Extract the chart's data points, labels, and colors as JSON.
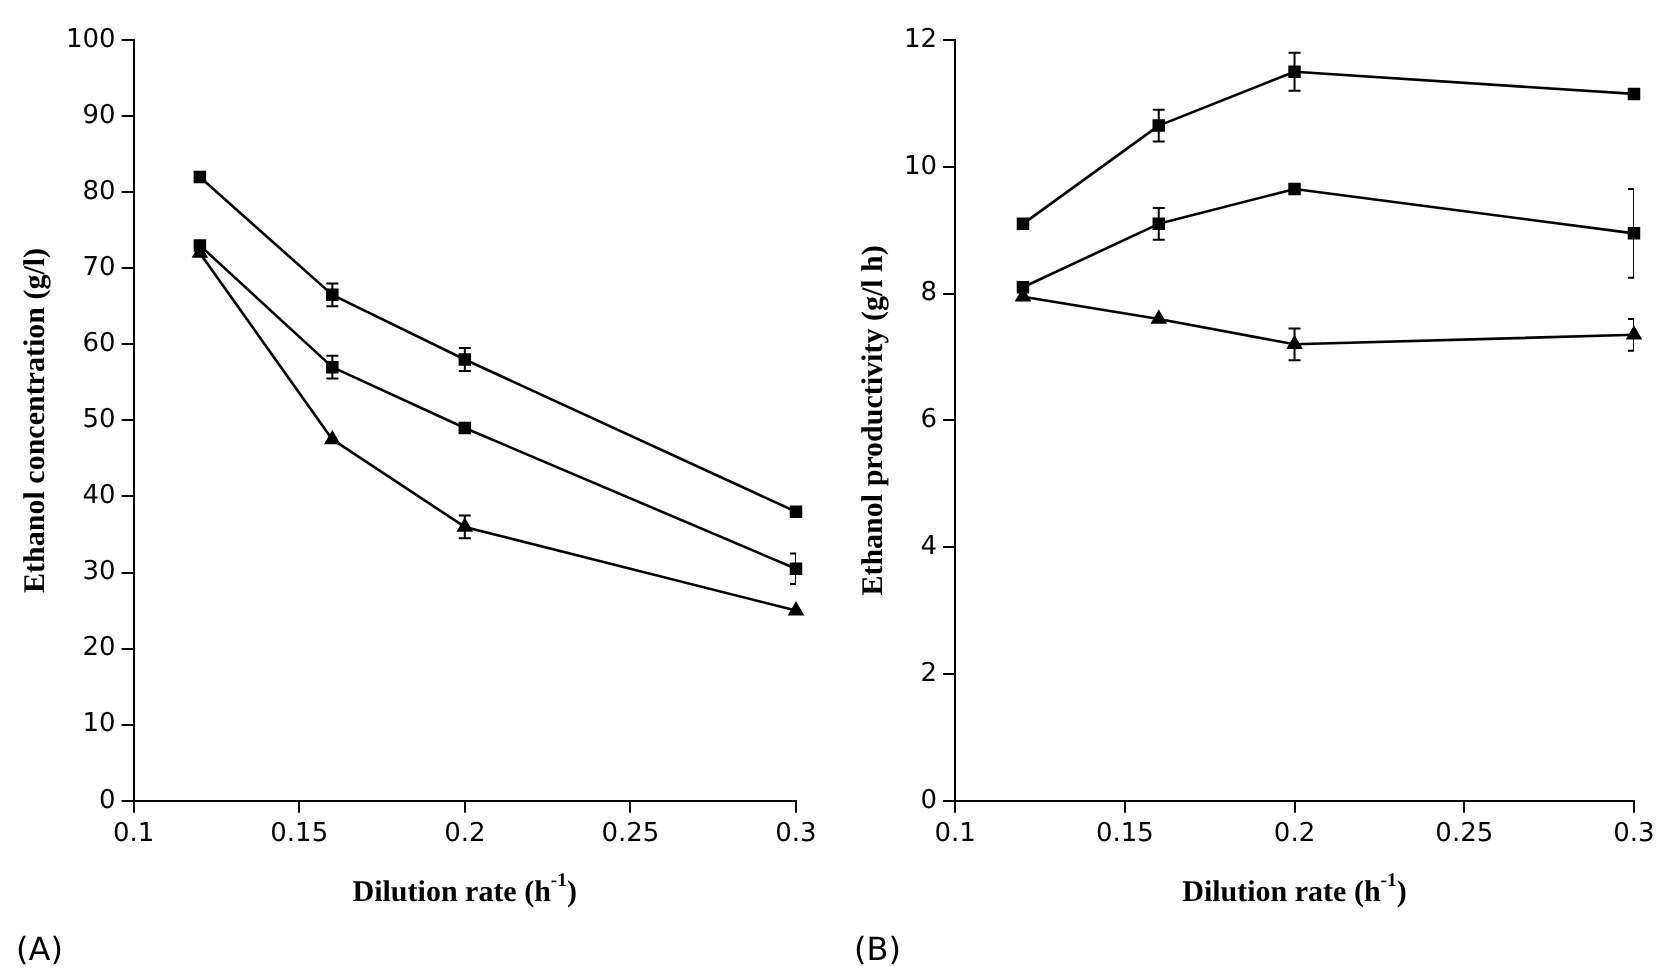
{
  "chart_data": [
    {
      "type": "line",
      "xlabel": "Dilution rate (h$^{-1}$)",
      "ylabel": "Ethanol concentration (g/l)",
      "annotations": [
        "(A)"
      ],
      "xlim": [
        0.1,
        0.3
      ],
      "xticks": [
        0.1,
        0.15,
        0.2,
        0.25,
        0.3
      ],
      "ylim": [
        0,
        100
      ],
      "yticks": [
        0,
        10,
        20,
        30,
        40,
        50,
        60,
        70,
        80,
        90,
        100
      ],
      "grid": false,
      "legend": false,
      "line_style": "solid",
      "series": [
        {
          "color": "#000000",
          "marker": "square",
          "x": [
            0.12,
            0.16,
            0.2,
            0.3
          ],
          "values": [
            82,
            66.5,
            58,
            38
          ],
          "errors": [
            null,
            1.5,
            1.5,
            null
          ]
        },
        {
          "color": "#000000",
          "marker": "square",
          "x": [
            0.12,
            0.16,
            0.2,
            0.3
          ],
          "values": [
            73,
            57,
            49,
            30.5
          ],
          "errors": [
            null,
            1.5,
            null,
            2
          ]
        },
        {
          "color": "#000000",
          "marker": "triangle",
          "x": [
            0.12,
            0.16,
            0.2,
            0.3
          ],
          "values": [
            72,
            47.5,
            36,
            25
          ],
          "errors": [
            null,
            null,
            1.5,
            null
          ]
        }
      ]
    },
    {
      "type": "line",
      "xlabel": "Dilution rate (h$^{-1}$)",
      "ylabel": "Ethanol productivity (g/l h)",
      "annotations": [
        "(B)"
      ],
      "xlim": [
        0.1,
        0.3
      ],
      "xticks": [
        0.1,
        0.15,
        0.2,
        0.25,
        0.3
      ],
      "ylim": [
        0,
        12
      ],
      "yticks": [
        0,
        2,
        4,
        6,
        8,
        10,
        12
      ],
      "grid": false,
      "legend": false,
      "line_style": "solid",
      "series": [
        {
          "color": "#000000",
          "marker": "square",
          "x": [
            0.12,
            0.16,
            0.2,
            0.3
          ],
          "values": [
            9.1,
            10.65,
            11.5,
            11.15
          ],
          "errors": [
            null,
            0.25,
            0.3,
            null
          ]
        },
        {
          "color": "#000000",
          "marker": "square",
          "x": [
            0.12,
            0.16,
            0.2,
            0.3
          ],
          "values": [
            8.1,
            9.1,
            9.65,
            8.95
          ],
          "errors": [
            null,
            0.25,
            null,
            0.7
          ]
        },
        {
          "color": "#000000",
          "marker": "triangle",
          "x": [
            0.12,
            0.16,
            0.2,
            0.3
          ],
          "values": [
            7.95,
            7.6,
            7.2,
            7.35
          ],
          "errors": [
            null,
            null,
            0.25,
            0.25
          ]
        }
      ]
    }
  ]
}
